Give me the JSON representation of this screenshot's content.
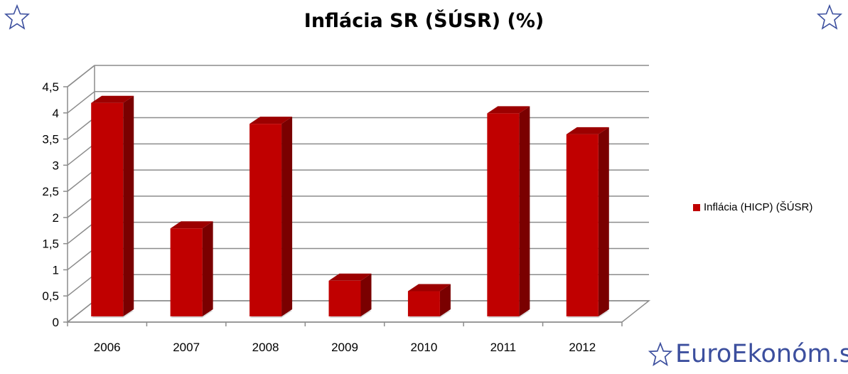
{
  "chart_data": {
    "type": "bar",
    "title": "Inflácia SR (ŠÚSR) (%)",
    "categories": [
      "2006",
      "2007",
      "2008",
      "2009",
      "2010",
      "2011",
      "2012"
    ],
    "series": [
      {
        "name": "Inflácia (HICP) (ŠÚSR)",
        "values": [
          4.3,
          1.9,
          3.9,
          0.9,
          0.7,
          4.1,
          3.7
        ]
      }
    ],
    "ylim": [
      0,
      4.5
    ],
    "yticks": [
      "0",
      "0,5",
      "1",
      "1,5",
      "2",
      "2,5",
      "3",
      "3,5",
      "4",
      "4,5"
    ],
    "grid": true,
    "legend": "right",
    "colors": {
      "bar_front": "#c00000",
      "bar_side": "#7a0000",
      "bar_top": "#9c0000"
    }
  },
  "branding": {
    "text": "EuroEkonóm.sk",
    "color": "#3c4f9e"
  }
}
